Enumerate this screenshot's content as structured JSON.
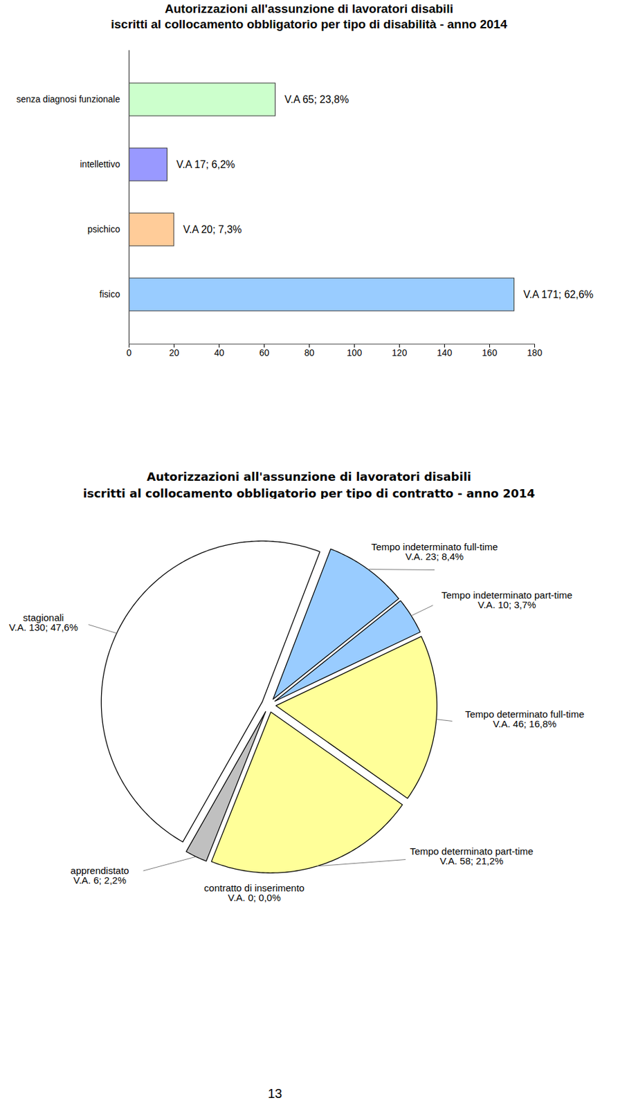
{
  "chart_data": [
    {
      "type": "bar",
      "title": "Autorizzazioni all'assunzione di lavoratori disabili\niscritti al collocamento obbligatorio per tipo di disabilità - anno 2014",
      "orientation": "horizontal",
      "categories": [
        "senza diagnosi funzionale",
        "intellettivo",
        "psichico",
        "fisico"
      ],
      "values": [
        65,
        17,
        20,
        171
      ],
      "value_labels": [
        "V.A 65; 23,8%",
        "V.A 17; 6,2%",
        "V.A 20; 7,3%",
        "V.A 171; 62,6%"
      ],
      "data_labels": true,
      "colors": [
        "#ccffcc",
        "#9999ff",
        "#ffcc99",
        "#99ccff"
      ],
      "xlim": [
        0,
        180
      ],
      "xticks": [
        0,
        20,
        40,
        60,
        80,
        100,
        120,
        140,
        160,
        180
      ]
    },
    {
      "type": "pie",
      "title": "Autorizzazioni all'assunzione di lavoratori disabili\niscritti al collocamento obbligatorio per tipo di contratto - anno 2014",
      "categories": [
        "Tempo indeterminato full-time",
        "Tempo indeterminato part-time",
        "Tempo determinato full-time",
        "Tempo determinato part-time",
        "contratto di inserimento",
        "apprendistato",
        "stagionali"
      ],
      "values": [
        23,
        10,
        46,
        58,
        0,
        6,
        130
      ],
      "value_labels": [
        "V.A. 23; 8,4%",
        "V.A. 10; 3,7%",
        "V.A. 46; 16,8%",
        "V.A. 58; 21,2%",
        "V.A. 0; 0,0%",
        "V.A. 6; 2,2%",
        "V.A. 130; 47,6%"
      ],
      "data_labels": true,
      "colors": [
        "#99ccff",
        "#99ccff",
        "#ffff99",
        "#ffff99",
        "#ffff99",
        "#c0c0c0",
        "#ffffff"
      ]
    }
  ],
  "page_number": "13"
}
